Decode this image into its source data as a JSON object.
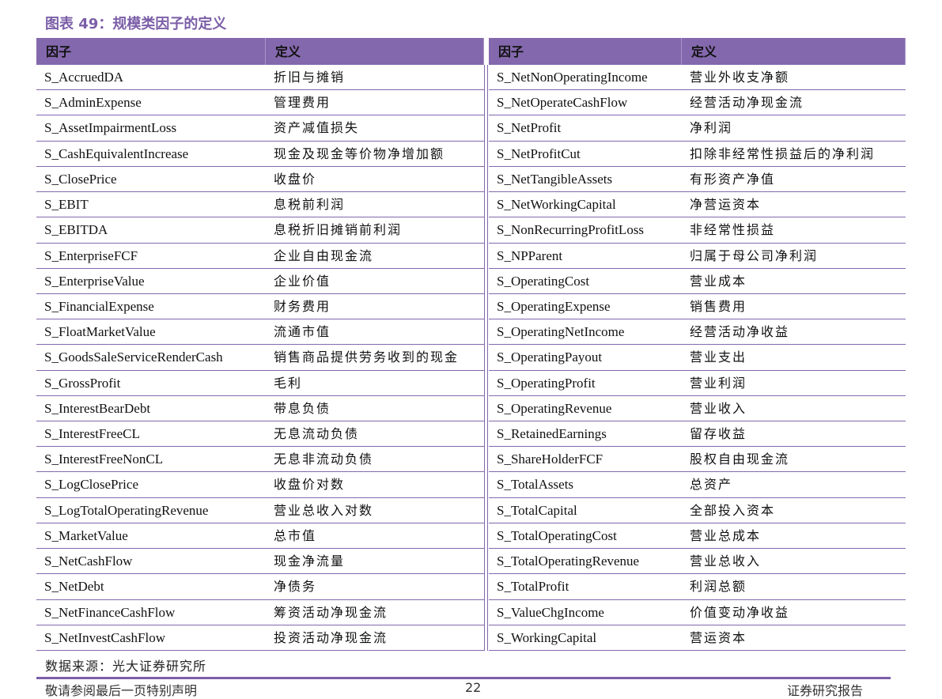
{
  "header": {
    "title": "图表 49：规模类因子的定义"
  },
  "table": {
    "columns": [
      "因子",
      "定义",
      "因子",
      "定义"
    ],
    "rows": [
      [
        "S_AccruedDA",
        "折旧与摊销",
        "S_NetNonOperatingIncome",
        "营业外收支净额"
      ],
      [
        "S_AdminExpense",
        "管理费用",
        "S_NetOperateCashFlow",
        "经营活动净现金流"
      ],
      [
        "S_AssetImpairmentLoss",
        "资产减值损失",
        "S_NetProfit",
        "净利润"
      ],
      [
        "S_CashEquivalentIncrease",
        "现金及现金等价物净增加额",
        "S_NetProfitCut",
        "扣除非经常性损益后的净利润"
      ],
      [
        "S_ClosePrice",
        "收盘价",
        "S_NetTangibleAssets",
        "有形资产净值"
      ],
      [
        "S_EBIT",
        "息税前利润",
        "S_NetWorkingCapital",
        "净营运资本"
      ],
      [
        "S_EBITDA",
        "息税折旧摊销前利润",
        "S_NonRecurringProfitLoss",
        "非经常性损益"
      ],
      [
        "S_EnterpriseFCF",
        "企业自由现金流",
        "S_NPParent",
        "归属于母公司净利润"
      ],
      [
        "S_EnterpriseValue",
        "企业价值",
        "S_OperatingCost",
        "营业成本"
      ],
      [
        "S_FinancialExpense",
        "财务费用",
        "S_OperatingExpense",
        "销售费用"
      ],
      [
        "S_FloatMarketValue",
        "流通市值",
        "S_OperatingNetIncome",
        "经营活动净收益"
      ],
      [
        "S_GoodsSaleServiceRenderCash",
        "销售商品提供劳务收到的现金",
        "S_OperatingPayout",
        "营业支出"
      ],
      [
        "S_GrossProfit",
        "毛利",
        "S_OperatingProfit",
        "营业利润"
      ],
      [
        "S_InterestBearDebt",
        "带息负债",
        "S_OperatingRevenue",
        "营业收入"
      ],
      [
        "S_InterestFreeCL",
        "无息流动负债",
        "S_RetainedEarnings",
        "留存收益"
      ],
      [
        "S_InterestFreeNonCL",
        "无息非流动负债",
        "S_ShareHolderFCF",
        "股权自由现金流"
      ],
      [
        "S_LogClosePrice",
        "收盘价对数",
        "S_TotalAssets",
        "总资产"
      ],
      [
        "S_LogTotalOperatingRevenue",
        "营业总收入对数",
        "S_TotalCapital",
        "全部投入资本"
      ],
      [
        "S_MarketValue",
        "总市值",
        "S_TotalOperatingCost",
        "营业总成本"
      ],
      [
        "S_NetCashFlow",
        "现金净流量",
        "S_TotalOperatingRevenue",
        "营业总收入"
      ],
      [
        "S_NetDebt",
        "净债务",
        "S_TotalProfit",
        "利润总额"
      ],
      [
        "S_NetFinanceCashFlow",
        "筹资活动净现金流",
        "S_ValueChgIncome",
        "价值变动净收益"
      ],
      [
        "S_NetInvestCashFlow",
        "投资活动净现金流",
        "S_WorkingCapital",
        "营运资本"
      ]
    ]
  },
  "source": "数据来源：光大证券研究所",
  "footer": {
    "left": "敬请参阅最后一页特别声明",
    "page": "22",
    "right": "证券研究报告"
  }
}
